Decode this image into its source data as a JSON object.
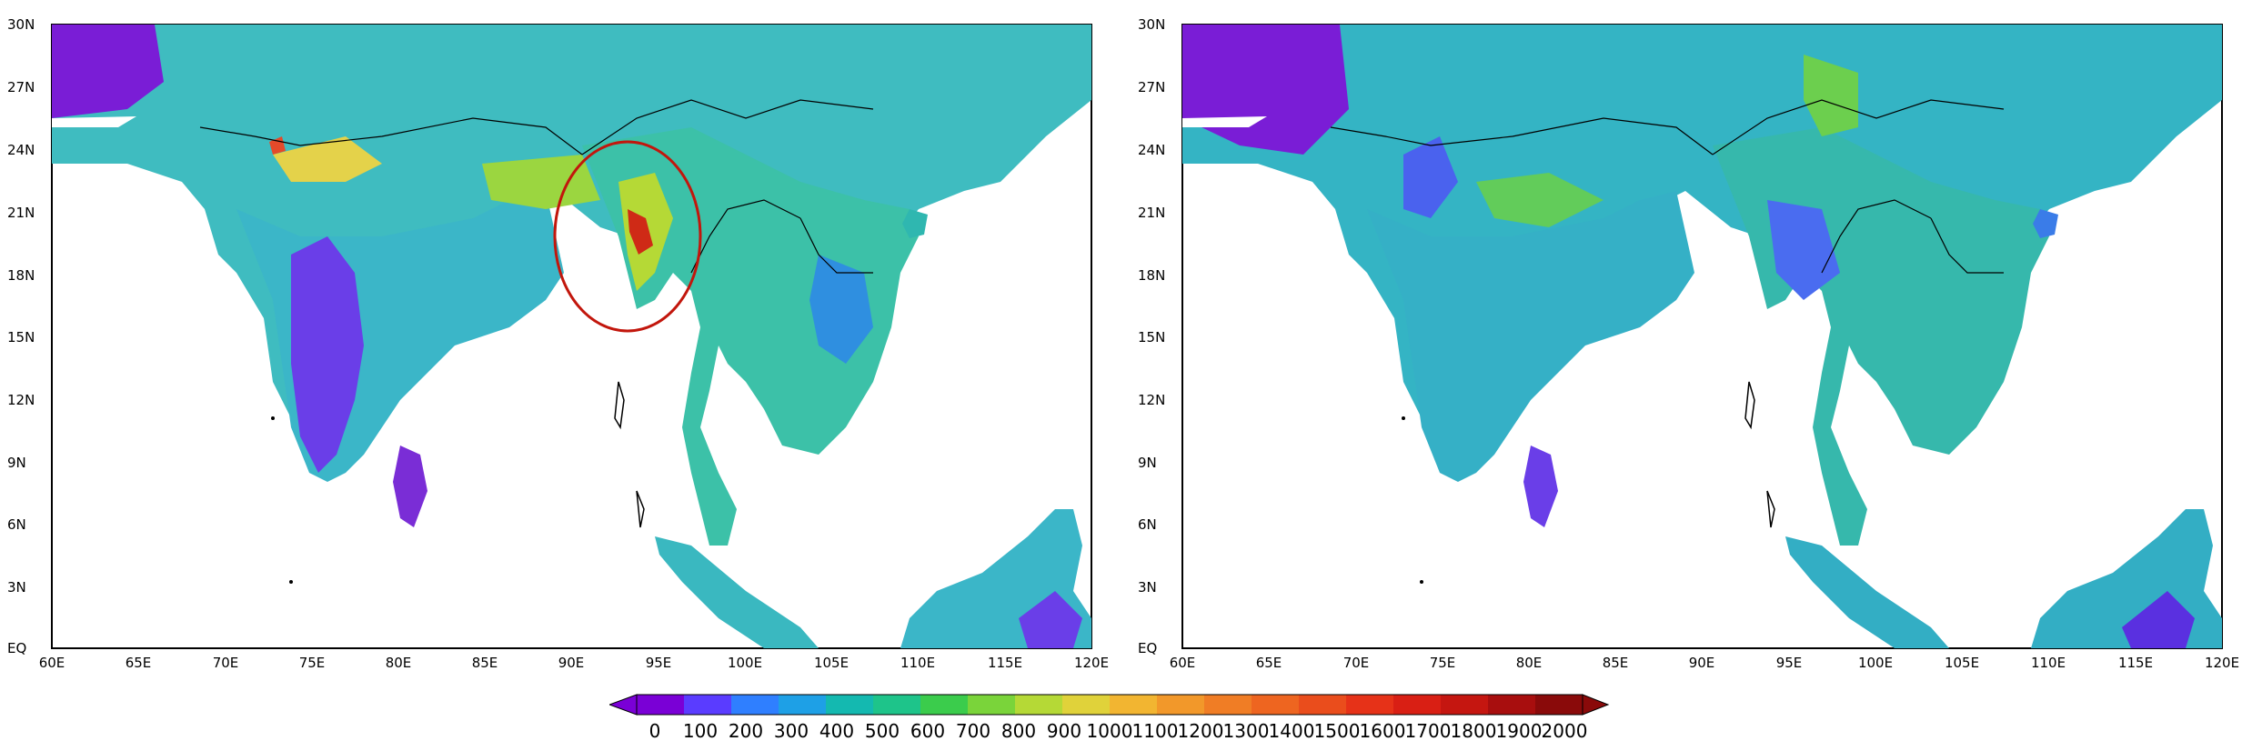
{
  "panels": [
    {
      "id": "left",
      "lat_labels": [
        "30N",
        "27N",
        "24N",
        "21N",
        "18N",
        "15N",
        "12N",
        "9N",
        "6N",
        "3N",
        "EQ"
      ],
      "lon_labels": [
        "60E",
        "65E",
        "70E",
        "75E",
        "80E",
        "85E",
        "90E",
        "95E",
        "100E",
        "105E",
        "110E",
        "115E",
        "120E"
      ],
      "annotation": "red-ellipse-highlight"
    },
    {
      "id": "right",
      "lat_labels": [
        "30N",
        "27N",
        "24N",
        "21N",
        "18N",
        "15N",
        "12N",
        "9N",
        "6N",
        "3N",
        "EQ"
      ],
      "lon_labels": [
        "60E",
        "65E",
        "70E",
        "75E",
        "80E",
        "85E",
        "90E",
        "95E",
        "100E",
        "105E",
        "110E",
        "115E",
        "120E"
      ]
    }
  ],
  "colorbar": {
    "labels": [
      "0",
      "100",
      "200",
      "300",
      "400",
      "500",
      "600",
      "700",
      "800",
      "900",
      "1000",
      "1100",
      "1200",
      "1300",
      "1400",
      "1500",
      "1600",
      "1700",
      "1800",
      "1900",
      "2000"
    ],
    "colors": [
      "#7a00d6",
      "#5a3cff",
      "#2f7fff",
      "#1ea0e6",
      "#14b9b0",
      "#1ec48a",
      "#3bcc4c",
      "#7ad43a",
      "#b5d936",
      "#e0d23a",
      "#f2b531",
      "#f2982a",
      "#f07d25",
      "#ee6520",
      "#ea4d1c",
      "#e63218",
      "#d91f14",
      "#c51610",
      "#a80e0e",
      "#8a0a0a"
    ]
  }
}
